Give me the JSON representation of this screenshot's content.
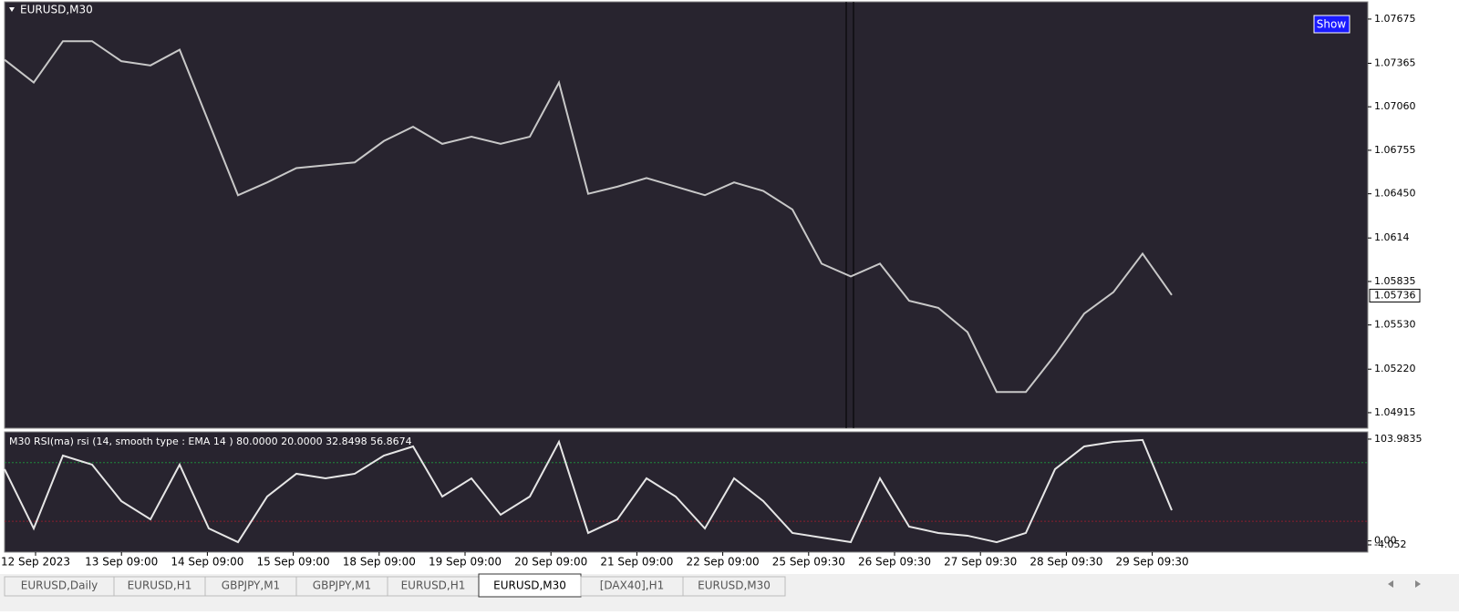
{
  "chart_data": [
    {
      "type": "line",
      "title": "EURUSD,M30",
      "color": "#c8c8c8",
      "values": [
        1.0739,
        1.0723,
        1.0752,
        1.0752,
        1.0738,
        1.0735,
        1.0746,
        1.0695,
        1.0644,
        1.0653,
        1.0663,
        1.0665,
        1.0667,
        1.0682,
        1.0692,
        1.068,
        1.0685,
        1.068,
        1.0685,
        1.0723,
        1.0645,
        1.065,
        1.0656,
        1.065,
        1.0644,
        1.0653,
        1.0647,
        1.0634,
        1.0596,
        1.0587,
        1.0596,
        1.057,
        1.0565,
        1.0548,
        1.0506,
        1.0506,
        1.0532,
        1.0561,
        1.0576,
        1.0603,
        1.0574
      ],
      "ylim": [
        1.04806,
        1.07796
      ],
      "yticks": [
        1.07675,
        1.07365,
        {
          "value": 1.0706,
          "label": "1.07060"
        },
        1.06755,
        {
          "value": 1.0645,
          "label": "1.06450"
        },
        1.0614,
        1.05835,
        {
          "value": 1.0553,
          "label": "1.05530"
        },
        {
          "value": 1.0522,
          "label": "1.05220"
        },
        1.04915
      ],
      "current_price": 1.05736,
      "x_labels": [
        "12 Sep 2023",
        "13 Sep 09:00",
        "14 Sep 09:00",
        "15 Sep 09:00",
        "18 Sep 09:00",
        "19 Sep 09:00",
        "20 Sep 09:00",
        "21 Sep 09:00",
        "22 Sep 09:00",
        "25 Sep 09:30",
        "26 Sep 09:30",
        "27 Sep 09:30",
        "28 Sep 09:30",
        "29 Sep 09:30"
      ]
    },
    {
      "type": "line",
      "title": "M30 RSI(ma) rsi (14, smooth type : EMA  14 ) 80.0000 20.0000 32.8498 56.8674",
      "color": "#e6e6e6",
      "values": [
        73.3,
        12.7,
        87.2,
        77.9,
        40.7,
        22.0,
        77.9,
        12.7,
        -1.3,
        45.3,
        68.6,
        63.9,
        68.6,
        87.2,
        96.5,
        45.3,
        63.9,
        26.7,
        45.3,
        101.2,
        8.1,
        22.0,
        63.9,
        45.3,
        12.7,
        63.9,
        40.7,
        8.1,
        3.4,
        -1.3,
        63.9,
        14.6,
        8.1,
        5.3,
        -1.3,
        8.1,
        73.3,
        96.5,
        101.2,
        103.1,
        31.3
      ],
      "ylim": [
        -11.5,
        111.4
      ],
      "yticks": [
        103.9835,
        -4.052,
        {
          "value": 0,
          "label": "0.00"
        }
      ],
      "levels": [
        80,
        20
      ],
      "level_colors": [
        "#1f8a3c",
        "#8a1f2e"
      ]
    }
  ],
  "button": "Show",
  "tabs": [
    "EURUSD,Daily",
    "EURUSD,H1",
    "GBPJPY,M1",
    "GBPJPY,M1",
    "EURUSD,H1",
    "EURUSD,M30",
    "[DAX40],H1",
    "EURUSD,M30"
  ],
  "active_tab": 5
}
